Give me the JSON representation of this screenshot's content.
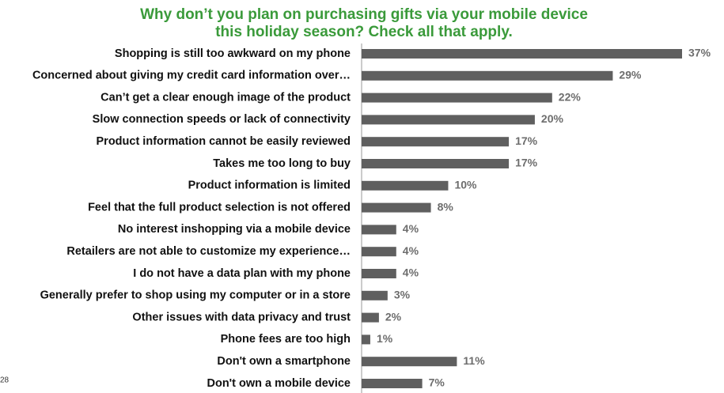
{
  "chart_data": {
    "type": "bar",
    "orientation": "horizontal",
    "title": "Why don’t you plan on purchasing gifts via your mobile device this holiday season? Check all that apply.",
    "categories": [
      "Shopping is still too awkward on my phone",
      "Concerned about giving my credit card information over…",
      "Can’t get a clear enough image of the product",
      "Slow connection speeds or lack of connectivity",
      "Product information cannot be easily reviewed",
      "Takes me too long to buy",
      "Product information is limited",
      "Feel that the full product selection is not offered",
      "No interest inshopping via a mobile device",
      "Retailers are not able to customize my experience…",
      "I do not have a data plan with my phone",
      "Generally prefer to shop using my computer or in a store",
      "Other issues with data privacy and trust",
      "Phone fees are too high",
      "Don't own a smartphone",
      "Don't own a  mobile device"
    ],
    "values": [
      37,
      29,
      22,
      20,
      17,
      17,
      10,
      8,
      4,
      4,
      4,
      3,
      2,
      1,
      11,
      7
    ],
    "value_labels": [
      "37%",
      "29%",
      "22%",
      "20%",
      "17%",
      "17%",
      "10%",
      "8%",
      "4%",
      "4%",
      "4%",
      "3%",
      "2%",
      "1%",
      "11%",
      "7%"
    ],
    "color": "#5f5f5f"
  },
  "slide_number": "28"
}
